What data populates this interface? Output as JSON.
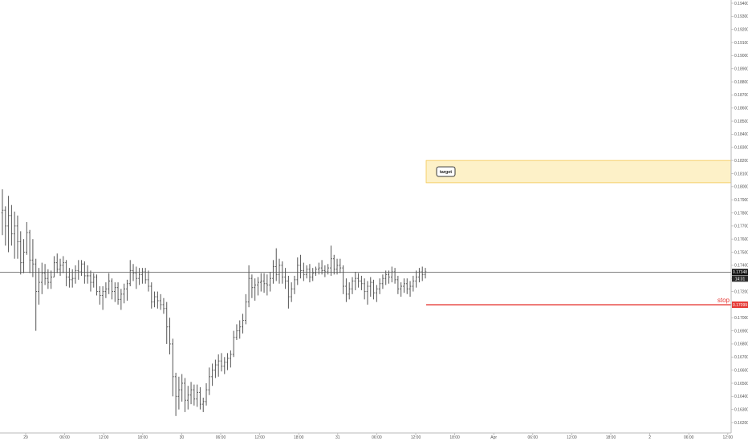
{
  "chart_data": {
    "type": "ohlc",
    "title": "",
    "xlabel": "",
    "ylabel": "",
    "ylim": [
      0.1615,
      0.1944
    ],
    "grid": false,
    "colors": {
      "bars": "#555555",
      "stop": "#e53935",
      "target_fill": "#fdf1c8",
      "target_border": "#f3c64f",
      "price_line": "#555555",
      "last_price_bg": "#111111"
    },
    "y_ticks": [
      "0.19400",
      "0.19300",
      "0.19200",
      "0.19100",
      "0.19000",
      "0.18900",
      "0.18800",
      "0.18700",
      "0.18600",
      "0.18500",
      "0.18400",
      "0.18300",
      "0.18200",
      "0.18100",
      "0.18000",
      "0.17900",
      "0.17800",
      "0.17700",
      "0.17600",
      "0.17500",
      "0.17400",
      "0.17300",
      "0.17200",
      "0.17100",
      "0.17000",
      "0.16900",
      "0.16800",
      "0.16700",
      "0.16600",
      "0.16500",
      "0.16400",
      "0.16300",
      "0.16200"
    ],
    "x_ticks": [
      "29",
      "06:00",
      "12:00",
      "18:00",
      "30",
      "06:00",
      "12:00",
      "18:00",
      "31",
      "06:00",
      "12:00",
      "18:00",
      "Apr",
      "06:00",
      "12:00",
      "18:00",
      "2",
      "06:00",
      "12:00"
    ],
    "last_price": "0.17348",
    "countdown": "14:31",
    "annotations": {
      "target": {
        "label": "target",
        "y_top": 0.182,
        "y_bottom": 0.1803
      },
      "stop": {
        "label": "stop",
        "price": 0.17099,
        "price_label": "0.17099"
      },
      "current_price_level": 0.17348
    },
    "series": [
      {
        "values": [
          [
            0.178,
            0.1798,
            0.1763,
            0.1782
          ],
          [
            0.1782,
            0.1785,
            0.1755,
            0.177
          ],
          [
            0.177,
            0.1793,
            0.175,
            0.1778
          ],
          [
            0.1778,
            0.1786,
            0.1755,
            0.1764
          ],
          [
            0.1764,
            0.1781,
            0.1745,
            0.177
          ],
          [
            0.177,
            0.1778,
            0.1745,
            0.1758
          ],
          [
            0.1758,
            0.1766,
            0.1733,
            0.1742
          ],
          [
            0.1742,
            0.176,
            0.1734,
            0.175
          ],
          [
            0.175,
            0.1773,
            0.1748,
            0.1765
          ],
          [
            0.1765,
            0.1767,
            0.1734,
            0.1744
          ],
          [
            0.1744,
            0.176,
            0.1731,
            0.1741
          ],
          [
            0.1741,
            0.1745,
            0.169,
            0.172
          ],
          [
            0.172,
            0.1738,
            0.171,
            0.1727
          ],
          [
            0.1727,
            0.1742,
            0.1718,
            0.1734
          ],
          [
            0.1734,
            0.1741,
            0.1725,
            0.173
          ],
          [
            0.173,
            0.1737,
            0.1722,
            0.1727
          ],
          [
            0.1727,
            0.1736,
            0.1722,
            0.1731
          ],
          [
            0.1731,
            0.1747,
            0.1731,
            0.1742
          ],
          [
            0.1742,
            0.1749,
            0.1734,
            0.1737
          ],
          [
            0.1737,
            0.1745,
            0.1732,
            0.174
          ],
          [
            0.174,
            0.1747,
            0.1734,
            0.1742
          ],
          [
            0.1742,
            0.1744,
            0.1724,
            0.1731
          ],
          [
            0.1731,
            0.1738,
            0.1723,
            0.1729
          ],
          [
            0.1729,
            0.1737,
            0.1723,
            0.173
          ],
          [
            0.173,
            0.174,
            0.1726,
            0.1736
          ],
          [
            0.1736,
            0.1744,
            0.1729,
            0.1735
          ],
          [
            0.1735,
            0.1744,
            0.1732,
            0.1741
          ],
          [
            0.1741,
            0.1743,
            0.1726,
            0.1732
          ],
          [
            0.1732,
            0.174,
            0.1726,
            0.1732
          ],
          [
            0.1732,
            0.1736,
            0.172,
            0.1727
          ],
          [
            0.1727,
            0.1734,
            0.1723,
            0.1731
          ],
          [
            0.1731,
            0.1733,
            0.1717,
            0.172
          ],
          [
            0.172,
            0.1724,
            0.171,
            0.1717
          ],
          [
            0.1717,
            0.1724,
            0.1706,
            0.172
          ],
          [
            0.172,
            0.1727,
            0.1715,
            0.1722
          ],
          [
            0.1722,
            0.1734,
            0.1718,
            0.1728
          ],
          [
            0.1728,
            0.173,
            0.1714,
            0.172
          ],
          [
            0.172,
            0.1727,
            0.1712,
            0.1723
          ],
          [
            0.1723,
            0.1727,
            0.171,
            0.1714
          ],
          [
            0.1714,
            0.1722,
            0.1706,
            0.1718
          ],
          [
            0.1718,
            0.1726,
            0.1711,
            0.1722
          ],
          [
            0.1722,
            0.1729,
            0.1713,
            0.1726
          ],
          [
            0.1726,
            0.1744,
            0.1724,
            0.1736
          ],
          [
            0.1736,
            0.1741,
            0.1728,
            0.1734
          ],
          [
            0.1734,
            0.1739,
            0.1722,
            0.173
          ],
          [
            0.173,
            0.1738,
            0.1725,
            0.1733
          ],
          [
            0.1733,
            0.1738,
            0.1726,
            0.1735
          ],
          [
            0.1735,
            0.1738,
            0.1726,
            0.1729
          ],
          [
            0.1729,
            0.1736,
            0.172,
            0.1724
          ],
          [
            0.1724,
            0.1727,
            0.1707,
            0.1712
          ],
          [
            0.1712,
            0.172,
            0.1708,
            0.1716
          ],
          [
            0.1716,
            0.172,
            0.1707,
            0.1713
          ],
          [
            0.1713,
            0.1718,
            0.1706,
            0.171
          ],
          [
            0.171,
            0.1715,
            0.1703,
            0.1707
          ],
          [
            0.1707,
            0.1712,
            0.168,
            0.1693
          ],
          [
            0.1693,
            0.17,
            0.1672,
            0.168
          ],
          [
            0.168,
            0.1684,
            0.164,
            0.1655
          ],
          [
            0.1655,
            0.1658,
            0.1625,
            0.164
          ],
          [
            0.164,
            0.1655,
            0.163,
            0.1645
          ],
          [
            0.1645,
            0.1657,
            0.1636,
            0.165
          ],
          [
            0.165,
            0.1654,
            0.1628,
            0.1637
          ],
          [
            0.1637,
            0.1648,
            0.163,
            0.1641
          ],
          [
            0.1641,
            0.1651,
            0.1634,
            0.1645
          ],
          [
            0.1645,
            0.1649,
            0.1633,
            0.1638
          ],
          [
            0.1638,
            0.1649,
            0.1632,
            0.1643
          ],
          [
            0.1643,
            0.1647,
            0.163,
            0.1634
          ],
          [
            0.1634,
            0.1639,
            0.1628,
            0.1636
          ],
          [
            0.1636,
            0.165,
            0.1633,
            0.1645
          ],
          [
            0.1645,
            0.1662,
            0.1641,
            0.1655
          ],
          [
            0.1655,
            0.1665,
            0.1648,
            0.166
          ],
          [
            0.166,
            0.1668,
            0.1654,
            0.1664
          ],
          [
            0.1664,
            0.1672,
            0.1655,
            0.1667
          ],
          [
            0.1667,
            0.1673,
            0.1659,
            0.1663
          ],
          [
            0.1663,
            0.167,
            0.1657,
            0.1666
          ],
          [
            0.1666,
            0.1673,
            0.166,
            0.1669
          ],
          [
            0.1669,
            0.1675,
            0.1662,
            0.1672
          ],
          [
            0.1672,
            0.169,
            0.167,
            0.1685
          ],
          [
            0.1685,
            0.1695,
            0.1683,
            0.169
          ],
          [
            0.169,
            0.1698,
            0.1684,
            0.1693
          ],
          [
            0.1693,
            0.1703,
            0.1688,
            0.1698
          ],
          [
            0.1698,
            0.1718,
            0.1695,
            0.1712
          ],
          [
            0.1712,
            0.174,
            0.1708,
            0.173
          ],
          [
            0.173,
            0.1733,
            0.1715,
            0.1723
          ],
          [
            0.1723,
            0.173,
            0.1713,
            0.1725
          ],
          [
            0.1725,
            0.1731,
            0.1717,
            0.1727
          ],
          [
            0.1727,
            0.1734,
            0.172,
            0.1728
          ],
          [
            0.1728,
            0.1734,
            0.1719,
            0.1726
          ],
          [
            0.1726,
            0.1733,
            0.1717,
            0.1725
          ],
          [
            0.1725,
            0.1735,
            0.172,
            0.173
          ],
          [
            0.173,
            0.1744,
            0.1726,
            0.1739
          ],
          [
            0.1739,
            0.1753,
            0.1728,
            0.1733
          ],
          [
            0.1733,
            0.1745,
            0.1726,
            0.174
          ],
          [
            0.174,
            0.1743,
            0.1726,
            0.1731
          ],
          [
            0.1731,
            0.1738,
            0.1722,
            0.1728
          ],
          [
            0.1728,
            0.1732,
            0.1707,
            0.1716
          ],
          [
            0.1716,
            0.1727,
            0.1712,
            0.1722
          ],
          [
            0.1722,
            0.1732,
            0.1718,
            0.1729
          ],
          [
            0.1729,
            0.1746,
            0.1725,
            0.174
          ],
          [
            0.174,
            0.1748,
            0.173,
            0.1736
          ],
          [
            0.1736,
            0.1742,
            0.1728,
            0.1733
          ],
          [
            0.1733,
            0.174,
            0.173,
            0.1737
          ],
          [
            0.1737,
            0.1741,
            0.1727,
            0.1731
          ],
          [
            0.1731,
            0.1738,
            0.1728,
            0.1734
          ],
          [
            0.1734,
            0.1739,
            0.1732,
            0.1737
          ],
          [
            0.1737,
            0.1742,
            0.1733,
            0.1738
          ],
          [
            0.1738,
            0.1744,
            0.1733,
            0.1736
          ],
          [
            0.1736,
            0.174,
            0.1731,
            0.1735
          ],
          [
            0.1735,
            0.1741,
            0.1733,
            0.1738
          ],
          [
            0.1738,
            0.1755,
            0.1732,
            0.1745
          ],
          [
            0.1745,
            0.1748,
            0.1733,
            0.1737
          ],
          [
            0.1737,
            0.1745,
            0.1733,
            0.174
          ],
          [
            0.174,
            0.1745,
            0.1734,
            0.1738
          ],
          [
            0.1738,
            0.174,
            0.1718,
            0.1724
          ],
          [
            0.1724,
            0.173,
            0.1712,
            0.1718
          ],
          [
            0.1718,
            0.1727,
            0.1714,
            0.1722
          ],
          [
            0.1722,
            0.1731,
            0.1718,
            0.1728
          ],
          [
            0.1728,
            0.1735,
            0.1721,
            0.173
          ],
          [
            0.173,
            0.1734,
            0.1723,
            0.1728
          ],
          [
            0.1728,
            0.1732,
            0.1721,
            0.1726
          ],
          [
            0.1726,
            0.173,
            0.1714,
            0.172
          ],
          [
            0.172,
            0.1728,
            0.171,
            0.1724
          ],
          [
            0.1724,
            0.1731,
            0.1716,
            0.1727
          ],
          [
            0.1727,
            0.1729,
            0.1714,
            0.1719
          ],
          [
            0.1719,
            0.1725,
            0.1712,
            0.1722
          ],
          [
            0.1722,
            0.173,
            0.1718,
            0.1726
          ],
          [
            0.1726,
            0.1733,
            0.1722,
            0.173
          ],
          [
            0.173,
            0.1736,
            0.1725,
            0.1733
          ],
          [
            0.1733,
            0.1736,
            0.1726,
            0.1731
          ],
          [
            0.1731,
            0.1739,
            0.1727,
            0.1735
          ],
          [
            0.1735,
            0.1738,
            0.1726,
            0.1729
          ],
          [
            0.1729,
            0.1732,
            0.1718,
            0.1722
          ],
          [
            0.1722,
            0.1727,
            0.1716,
            0.1724
          ],
          [
            0.1724,
            0.173,
            0.1719,
            0.1726
          ],
          [
            0.1726,
            0.173,
            0.1718,
            0.1722
          ],
          [
            0.1722,
            0.1728,
            0.1716,
            0.1724
          ],
          [
            0.1724,
            0.1732,
            0.172,
            0.1728
          ],
          [
            0.1728,
            0.1736,
            0.1723,
            0.1731
          ],
          [
            0.1731,
            0.1738,
            0.1727,
            0.1735
          ],
          [
            0.1735,
            0.1739,
            0.1728,
            0.1733
          ],
          [
            0.1733,
            0.1738,
            0.173,
            0.1735
          ]
        ]
      }
    ]
  }
}
